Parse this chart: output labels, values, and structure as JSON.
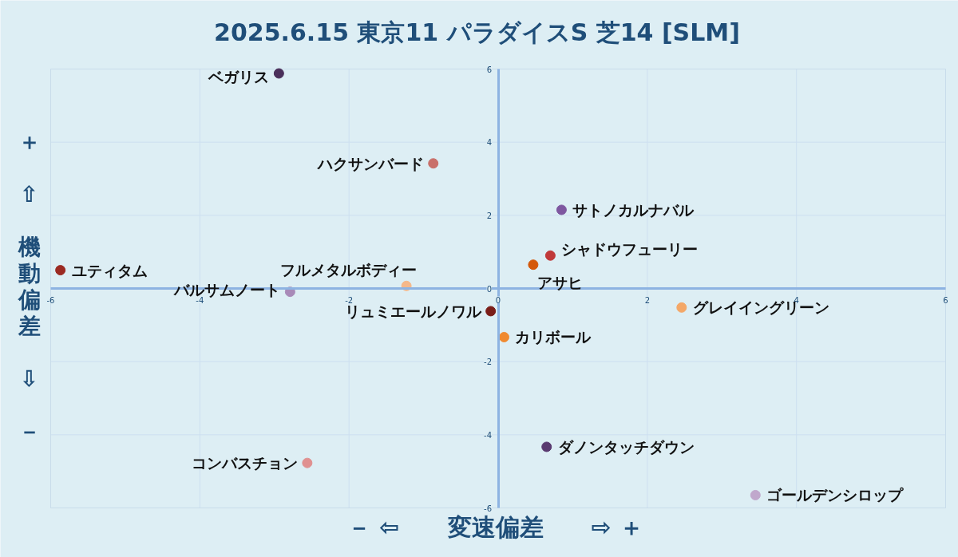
{
  "chart_data": {
    "type": "scatter",
    "title": "2025.6.15 東京11 パラダイスS 芝14 [SLM]",
    "xlabel": "－ ⇦　　変速偏差　　⇨ ＋",
    "ylabel": "＋ ⇧ 機動偏差 ⇩ －",
    "xlim": [
      -6,
      6
    ],
    "ylim": [
      -6,
      6
    ],
    "xticks": [
      -6,
      -4,
      -2,
      0,
      2,
      4,
      6
    ],
    "yticks": [
      -6,
      -4,
      -2,
      0,
      2,
      4,
      6
    ],
    "grid": true,
    "legend": false,
    "marker": "circle",
    "series": [
      {
        "name": "ベガリス",
        "color": "#4a2f5a",
        "x": [
          -2.94
        ],
        "values": [
          5.88
        ]
      },
      {
        "name": "ハクサンバード",
        "color": "#c9706a",
        "x": [
          -0.87
        ],
        "values": [
          3.42
        ]
      },
      {
        "name": "サトノカルナバル",
        "color": "#7e57a0",
        "x": [
          0.85
        ],
        "values": [
          2.15
        ]
      },
      {
        "name": "シャドウフューリー",
        "color": "#c0393a",
        "x": [
          0.7
        ],
        "values": [
          0.9
        ]
      },
      {
        "name": "アサヒ",
        "color": "#d4580a",
        "x": [
          0.47
        ],
        "values": [
          0.65
        ]
      },
      {
        "name": "ユティタム",
        "color": "#9b2a22",
        "x": [
          -5.87
        ],
        "values": [
          0.5
        ]
      },
      {
        "name": "フルメタルボディー",
        "color": "#f5b88a",
        "x": [
          -1.23
        ],
        "values": [
          0.07
        ]
      },
      {
        "name": "バルサムノート",
        "color": "#a88ab8",
        "x": [
          -2.79
        ],
        "values": [
          -0.09
        ]
      },
      {
        "name": "リュミエールノワル",
        "color": "#7a1d18",
        "x": [
          -0.1
        ],
        "values": [
          -0.62
        ]
      },
      {
        "name": "グレイイングリーン",
        "color": "#f4a868",
        "x": [
          2.46
        ],
        "values": [
          -0.52
        ]
      },
      {
        "name": "カリボール",
        "color": "#f08a30",
        "x": [
          0.08
        ],
        "values": [
          -1.33
        ]
      },
      {
        "name": "ダノンタッチダウン",
        "color": "#5a3a70",
        "x": [
          0.65
        ],
        "values": [
          -4.33
        ]
      },
      {
        "name": "コンバスチョン",
        "color": "#e09090",
        "x": [
          -2.56
        ],
        "values": [
          -4.77
        ]
      },
      {
        "name": "ゴールデンシロップ",
        "color": "#c0a8cc",
        "x": [
          3.45
        ],
        "values": [
          -5.65
        ]
      }
    ]
  }
}
